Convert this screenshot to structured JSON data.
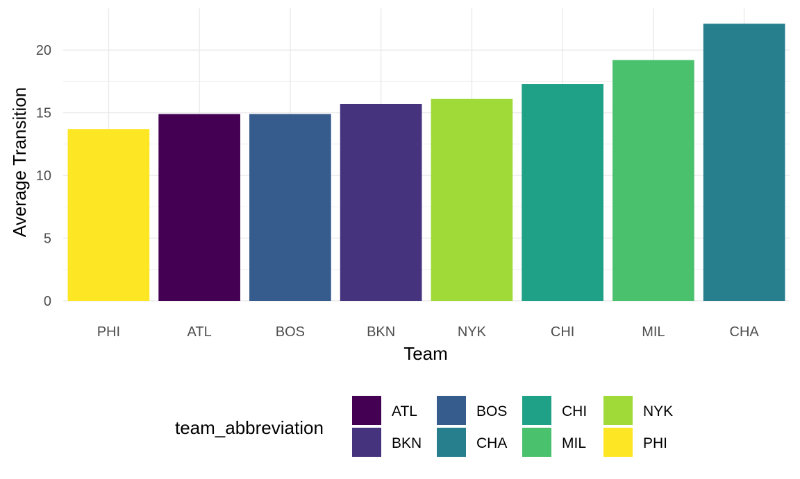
{
  "chart_data": {
    "type": "bar",
    "categories": [
      "PHI",
      "ATL",
      "BOS",
      "BKN",
      "NYK",
      "CHI",
      "MIL",
      "CHA"
    ],
    "values": [
      13.7,
      14.9,
      14.9,
      15.7,
      16.1,
      17.3,
      19.2,
      22.1
    ],
    "xlabel": "Team",
    "ylabel": "Average Transition",
    "ylim": [
      0,
      22.1
    ],
    "yticks": [
      0,
      5,
      10,
      15,
      20
    ],
    "grid": true,
    "legend": {
      "title": "team_abbreviation",
      "position": "bottom",
      "entries": [
        {
          "label": "ATL",
          "color": "#440154"
        },
        {
          "label": "BKN",
          "color": "#46337E"
        },
        {
          "label": "BOS",
          "color": "#365C8D"
        },
        {
          "label": "CHA",
          "color": "#277F8E"
        },
        {
          "label": "CHI",
          "color": "#1FA187"
        },
        {
          "label": "MIL",
          "color": "#4AC16D"
        },
        {
          "label": "NYK",
          "color": "#A0DA39"
        },
        {
          "label": "PHI",
          "color": "#FDE725"
        }
      ]
    }
  }
}
